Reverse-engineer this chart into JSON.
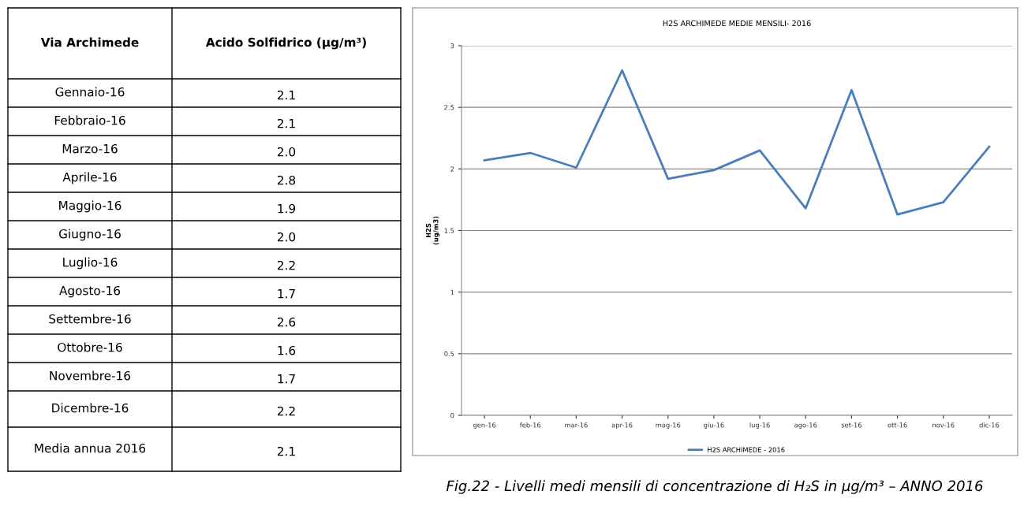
{
  "chart_data": [
    {
      "type": "other",
      "xlabel": "Via Archimede",
      "ylabel": "Acido Solfidrico (µg/m³)",
      "categories": [
        "Gennaio-16",
        "Febbraio-16",
        "Marzo-16",
        "Aprile-16",
        "Maggio-16",
        "Giugno-16",
        "Luglio-16",
        "Agosto-16",
        "Settembre-16",
        "Ottobre-16",
        "Novembre-16",
        "Dicembre-16",
        "Media annua 2016"
      ],
      "value_labels": [
        "2.1",
        "2.1",
        "2.0",
        "2.8",
        "1.9",
        "2.0",
        "2.2",
        "1.7",
        "2.6",
        "1.6",
        "1.7",
        "2.2",
        "2.1"
      ]
    },
    {
      "type": "line",
      "title": "H2S ARCHIMEDE MEDIE MENSILI- 2016",
      "ylabel": "H2S\n(ug/m3)",
      "categories": [
        "gen-16",
        "feb-16",
        "mar-16",
        "apr-16",
        "mag-16",
        "giu-16",
        "lug-16",
        "ago-16",
        "set-16",
        "ott-16",
        "nov-16",
        "dic-16"
      ],
      "series": [
        {
          "name": "H2S ARCHIMEDE - 2016",
          "color": "#4a7ebb",
          "values": [
            2.07,
            2.13,
            2.01,
            2.8,
            1.92,
            1.99,
            2.15,
            1.68,
            2.64,
            1.63,
            1.73,
            2.18
          ]
        }
      ],
      "ylim": [
        0,
        3
      ],
      "yticks": [
        0,
        0.5,
        1,
        1.5,
        2,
        2.5,
        3
      ],
      "grid": "y",
      "legend": "bottom",
      "marker": "none",
      "line_style": "solid",
      "annotations": [
        "Fig.22 - Livelli medi mensili di concentrazione di H₂S in µg/m³ – ANNO 2016"
      ]
    }
  ]
}
